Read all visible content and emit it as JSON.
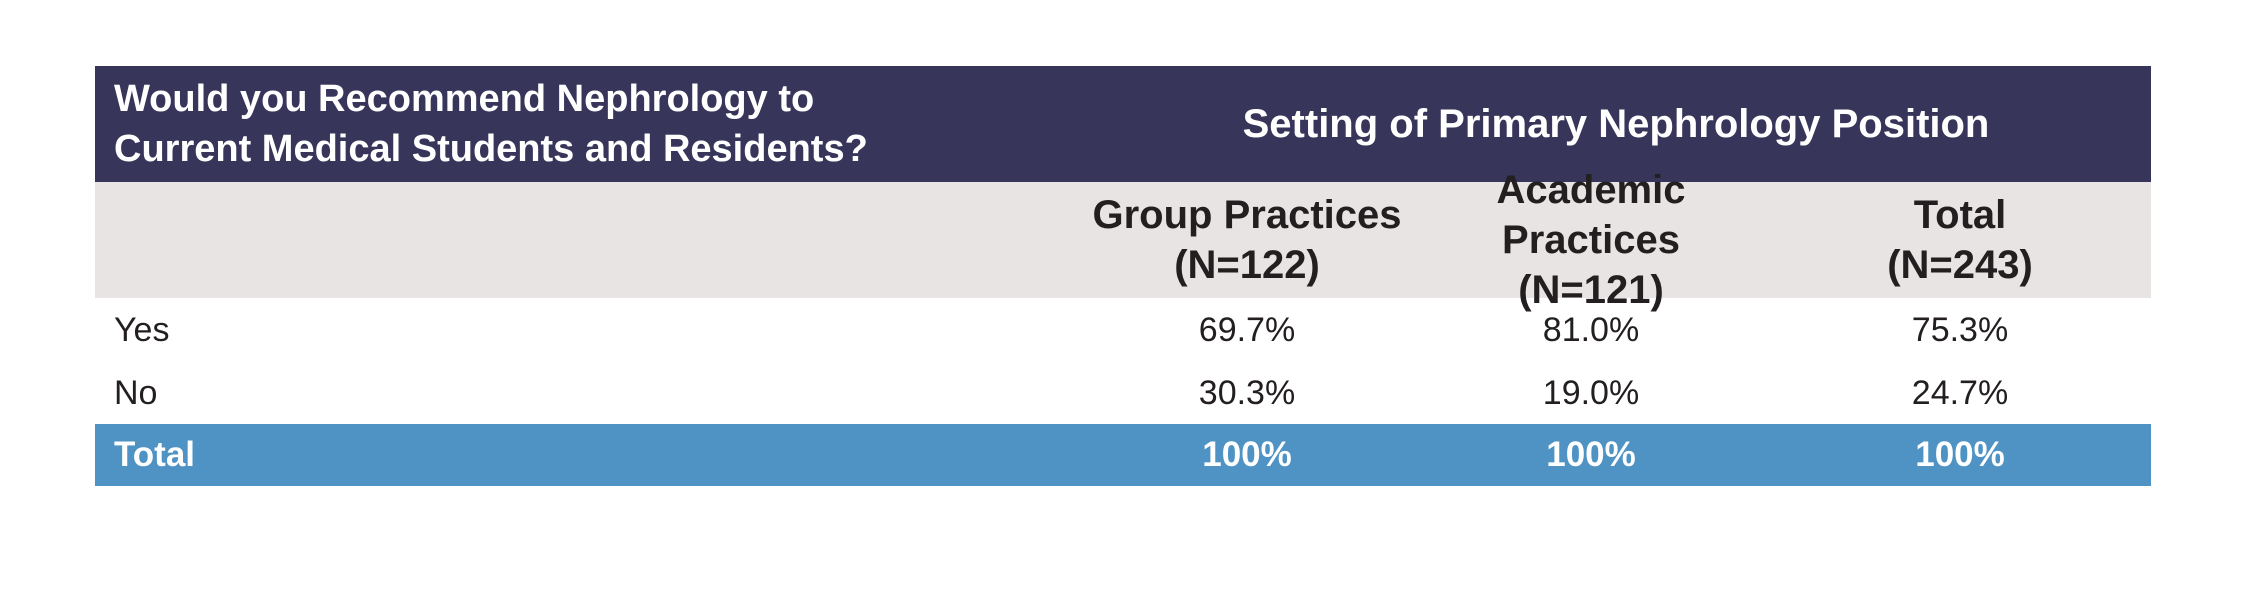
{
  "table": {
    "question_line1": "Would you Recommend Nephrology to",
    "question_line2": "Current Medical Students and Residents?",
    "setting_header": "Setting of Primary Nephrology Position",
    "columns": [
      {
        "label": "Group Practices",
        "n": "(N=122)"
      },
      {
        "label": "Academic Practices",
        "n": "(N=121)"
      },
      {
        "label": "Total",
        "n": "(N=243)"
      }
    ],
    "rows": [
      {
        "label": "Yes",
        "values": [
          "69.7%",
          "81.0%",
          "75.3%"
        ]
      },
      {
        "label": "No",
        "values": [
          "30.3%",
          "19.0%",
          "24.7%"
        ]
      }
    ],
    "total_row": {
      "label": "Total",
      "values": [
        "100%",
        "100%",
        "100%"
      ]
    }
  },
  "colors": {
    "header_dark": "#38355b",
    "header_light": "#e8e4e3",
    "total_blue": "#4e93c4",
    "text": "#231f20"
  }
}
